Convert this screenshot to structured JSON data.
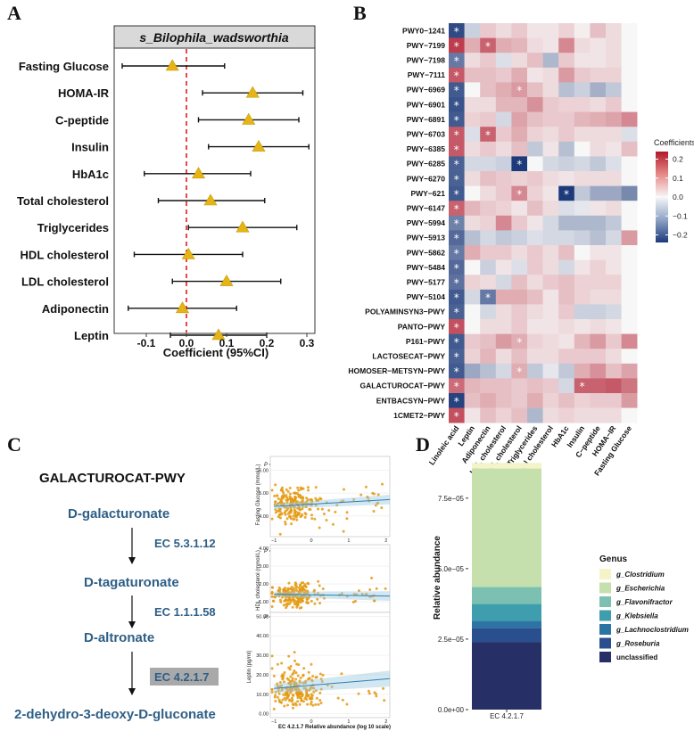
{
  "panels": {
    "a": "A",
    "b": "B",
    "c": "C",
    "d": "D"
  },
  "chart_data": [
    {
      "type": "forest",
      "title": "s_Bilophila_wadsworthia",
      "xlabel": "Coefficient (95%CI)",
      "xlim": [
        -0.18,
        0.32
      ],
      "xticks": [
        -0.1,
        0.0,
        0.1,
        0.2,
        0.3
      ],
      "xtick_labels": [
        "-0.1",
        "0.0",
        "0.1",
        "0.2",
        "0.3"
      ],
      "rows": [
        {
          "label": "Fasting Glucose",
          "est": -0.035,
          "lo": -0.16,
          "hi": 0.095
        },
        {
          "label": "HOMA-IR",
          "est": 0.165,
          "lo": 0.04,
          "hi": 0.29
        },
        {
          "label": "C-peptide",
          "est": 0.155,
          "lo": 0.03,
          "hi": 0.28
        },
        {
          "label": "Insulin",
          "est": 0.18,
          "lo": 0.055,
          "hi": 0.305
        },
        {
          "label": "HbA1c",
          "est": 0.03,
          "lo": -0.105,
          "hi": 0.16
        },
        {
          "label": "Total cholesterol",
          "est": 0.06,
          "lo": -0.07,
          "hi": 0.195
        },
        {
          "label": "Triglycerides",
          "est": 0.14,
          "lo": 0.005,
          "hi": 0.275
        },
        {
          "label": "HDL cholesterol",
          "est": 0.005,
          "lo": -0.13,
          "hi": 0.14
        },
        {
          "label": "LDL cholesterol",
          "est": 0.1,
          "lo": -0.035,
          "hi": 0.235
        },
        {
          "label": "Adiponectin",
          "est": -0.01,
          "lo": -0.145,
          "hi": 0.125
        },
        {
          "label": "Leptin",
          "est": 0.08,
          "lo": -0.04,
          "hi": 0.2
        }
      ]
    },
    {
      "type": "heatmap",
      "legend_title": "Coefficients",
      "legend_ticks": [
        0.2,
        0.1,
        0.0,
        -0.1,
        -0.2
      ],
      "legend_tick_labels": [
        "0.2",
        "0.1",
        "0.0",
        "−0.1",
        "−0.2"
      ],
      "rows": [
        "PWY0−1241",
        "PWY−7199",
        "PWY−7198",
        "PWY−7111",
        "PWY−6969",
        "PWY−6901",
        "PWY−6891",
        "PWY−6703",
        "PWY−6385",
        "PWY−6285",
        "PWY−6270",
        "PWY−621",
        "PWY−6147",
        "PWY−5994",
        "PWY−5913",
        "PWY−5862",
        "PWY−5484",
        "PWY−5177",
        "PWY−5104",
        "POLYAMINSYN3−PWY",
        "PANTO−PWY",
        "P161−PWY",
        "LACTOSECAT−PWY",
        "HOMOSER−METSYN−PWY",
        "GALACTUROCAT−PWY",
        "ENTBACSYN−PWY",
        "1CMET2−PWY"
      ],
      "cols": [
        "Linoleic acid",
        "Leptin",
        "Adiponectin",
        "LDL cholesterol",
        "HDL cholesterol",
        "Triglycerides",
        "Total cholesterol",
        "HbA1c",
        "Insulin",
        "C−peptide",
        "HOMA−IR",
        "Fasting Glucose"
      ],
      "values": [
        [
          -0.22,
          -0.05,
          0.05,
          0.03,
          0.05,
          0.02,
          0.02,
          0.04,
          0.01,
          0.06,
          0.03,
          0.0
        ],
        [
          0.2,
          0.08,
          0.16,
          0.08,
          0.07,
          0.03,
          0.02,
          0.12,
          0.03,
          0.02,
          0.03,
          0.0
        ],
        [
          -0.16,
          0.03,
          0.05,
          -0.03,
          0.03,
          0.06,
          -0.08,
          0.05,
          0.02,
          0.02,
          0.03,
          0.0
        ],
        [
          0.17,
          0.06,
          0.06,
          0.05,
          0.08,
          0.02,
          0.03,
          0.1,
          0.05,
          0.04,
          0.04,
          0.0
        ],
        [
          -0.2,
          0.0,
          0.06,
          0.08,
          0.1,
          0.06,
          0.03,
          -0.07,
          -0.05,
          -0.09,
          -0.06,
          0.0
        ],
        [
          -0.21,
          0.03,
          0.03,
          0.07,
          0.07,
          0.11,
          0.05,
          0.04,
          0.04,
          0.03,
          0.05,
          0.0
        ],
        [
          -0.2,
          0.04,
          0.05,
          -0.04,
          0.09,
          0.06,
          0.05,
          0.05,
          0.07,
          0.08,
          0.09,
          0.12
        ],
        [
          0.17,
          -0.03,
          0.16,
          0.05,
          0.08,
          0.04,
          0.03,
          0.05,
          0.03,
          0.03,
          0.03,
          -0.03
        ],
        [
          0.17,
          0.03,
          0.05,
          0.03,
          0.06,
          -0.06,
          0.02,
          -0.07,
          0.0,
          0.03,
          0.02,
          0.06
        ],
        [
          -0.19,
          -0.04,
          -0.04,
          -0.05,
          -0.24,
          0.0,
          -0.04,
          -0.05,
          -0.04,
          -0.06,
          -0.03,
          0.0
        ],
        [
          -0.19,
          0.03,
          0.06,
          0.05,
          0.04,
          0.05,
          0.03,
          0.02,
          0.03,
          0.03,
          0.03,
          0.0
        ],
        [
          -0.2,
          0.0,
          0.03,
          0.05,
          0.12,
          0.04,
          0.02,
          -0.26,
          -0.06,
          -0.1,
          -0.1,
          -0.14
        ],
        [
          0.16,
          0.07,
          0.05,
          0.04,
          0.02,
          0.06,
          0.03,
          -0.03,
          -0.02,
          0.02,
          0.03,
          0.0
        ],
        [
          -0.15,
          0.03,
          0.04,
          0.12,
          0.05,
          0.02,
          -0.04,
          -0.08,
          -0.08,
          -0.08,
          -0.06,
          0.0
        ],
        [
          -0.18,
          -0.07,
          -0.04,
          -0.06,
          -0.05,
          -0.03,
          -0.04,
          -0.04,
          -0.05,
          -0.07,
          -0.04,
          0.1
        ],
        [
          -0.16,
          0.08,
          0.05,
          0.05,
          0.03,
          0.05,
          0.03,
          0.06,
          0.0,
          0.02,
          0.02,
          0.0
        ],
        [
          -0.18,
          0.0,
          -0.05,
          0.02,
          -0.03,
          0.05,
          0.03,
          -0.04,
          0.02,
          0.04,
          0.02,
          0.0
        ],
        [
          -0.17,
          0.04,
          0.03,
          -0.04,
          0.06,
          0.03,
          0.05,
          0.06,
          0.04,
          0.04,
          0.04,
          0.0
        ],
        [
          -0.2,
          -0.04,
          -0.16,
          0.08,
          0.08,
          0.06,
          0.02,
          0.06,
          0.04,
          0.03,
          0.03,
          0.0
        ],
        [
          -0.19,
          0.0,
          -0.04,
          0.03,
          0.05,
          0.03,
          0.02,
          0.05,
          -0.05,
          -0.05,
          -0.04,
          0.0
        ],
        [
          0.18,
          0.0,
          0.03,
          0.03,
          0.05,
          0.02,
          0.02,
          0.03,
          0.02,
          0.03,
          0.02,
          0.0
        ],
        [
          -0.2,
          0.05,
          0.06,
          0.1,
          0.08,
          0.04,
          0.03,
          0.02,
          0.07,
          0.1,
          0.05,
          0.12
        ],
        [
          -0.19,
          0.04,
          0.07,
          0.03,
          0.06,
          0.03,
          0.03,
          0.05,
          0.05,
          0.05,
          0.03,
          0.0
        ],
        [
          -0.2,
          -0.1,
          -0.07,
          -0.04,
          0.08,
          -0.06,
          -0.02,
          -0.06,
          0.08,
          0.11,
          0.06,
          0.09
        ],
        [
          0.15,
          0.07,
          0.06,
          0.06,
          0.05,
          0.06,
          0.05,
          -0.04,
          0.16,
          0.16,
          0.17,
          0.14
        ],
        [
          -0.23,
          0.06,
          0.08,
          0.06,
          0.05,
          0.08,
          0.04,
          0.06,
          0.04,
          0.05,
          0.05,
          0.1
        ],
        [
          0.18,
          0.02,
          0.06,
          0.04,
          0.06,
          -0.08,
          0.03,
          0.04,
          0.03,
          0.03,
          0.03,
          0.0
        ]
      ],
      "significant": [
        [
          0,
          0
        ],
        [
          1,
          0
        ],
        [
          1,
          2
        ],
        [
          2,
          0
        ],
        [
          3,
          0
        ],
        [
          4,
          0
        ],
        [
          4,
          4
        ],
        [
          5,
          0
        ],
        [
          6,
          0
        ],
        [
          7,
          0
        ],
        [
          7,
          2
        ],
        [
          8,
          0
        ],
        [
          9,
          0
        ],
        [
          9,
          4
        ],
        [
          10,
          0
        ],
        [
          11,
          0
        ],
        [
          11,
          4
        ],
        [
          11,
          7
        ],
        [
          12,
          0
        ],
        [
          13,
          0
        ],
        [
          14,
          0
        ],
        [
          15,
          0
        ],
        [
          16,
          0
        ],
        [
          17,
          0
        ],
        [
          18,
          0
        ],
        [
          18,
          2
        ],
        [
          19,
          0
        ],
        [
          20,
          0
        ],
        [
          21,
          0
        ],
        [
          21,
          4
        ],
        [
          22,
          0
        ],
        [
          23,
          0
        ],
        [
          23,
          4
        ],
        [
          24,
          0
        ],
        [
          24,
          8
        ],
        [
          25,
          0
        ],
        [
          26,
          0
        ]
      ]
    },
    {
      "type": "scatter",
      "ylabel": "Fasting Glucose (mmol/L)",
      "annotation": "P = 0.04",
      "xlim": [
        -1.1,
        2.1
      ],
      "ylim": [
        3.1,
        6.6
      ],
      "yticks": [
        4.0,
        5.0,
        6.0
      ],
      "ytick_labels": [
        "4.00",
        "5.00",
        "6.00"
      ],
      "xticks": [
        -1,
        0,
        1,
        2
      ],
      "xtick_labels": [
        "−1",
        "0",
        "1",
        "2"
      ],
      "fit": {
        "x0": -1.0,
        "y0": 4.42,
        "x1": 2.1,
        "y1": 4.72
      }
    },
    {
      "type": "scatter",
      "ylabel": "HDL cholesterol (mmol/L)",
      "annotation": "P = 0.03",
      "xlim": [
        -1.1,
        2.1
      ],
      "ylim": [
        0.4,
        4.2
      ],
      "yticks": [
        1.0,
        2.0,
        3.0,
        4.0
      ],
      "ytick_labels": [
        "1.00",
        "2.00",
        "3.00",
        "4.00"
      ],
      "xticks": [
        -1,
        0,
        1,
        2
      ],
      "xtick_labels": [
        "−1",
        "0",
        "1",
        "2"
      ],
      "fit": {
        "x0": -1.0,
        "y0": 1.42,
        "x1": 2.1,
        "y1": 1.32
      }
    },
    {
      "type": "scatter",
      "ylabel": "Leptin (pg/ml)",
      "annotation": "P = 0.03",
      "xlabel": "EC 4.2.1.7 Relative abundance (log 10 scale)",
      "xlim": [
        -1.1,
        2.1
      ],
      "ylim": [
        -2,
        52
      ],
      "yticks": [
        0,
        10,
        20,
        30,
        40,
        50
      ],
      "ytick_labels": [
        "0.00",
        "10.00",
        "20.00",
        "30.00",
        "40.00",
        "50.00"
      ],
      "xticks": [
        -1,
        0,
        1,
        2
      ],
      "xtick_labels": [
        "−1",
        "0",
        "1",
        "2"
      ],
      "fit": {
        "x0": -1.0,
        "y0": 13.0,
        "x1": 2.1,
        "y1": 18.0
      }
    },
    {
      "type": "bar",
      "stacked": true,
      "ylabel": "Relative abundance",
      "categories": [
        "EC 4.2.1.7"
      ],
      "ylim": [
        0,
        9.2e-05
      ],
      "yticks": [
        0,
        2.5e-05,
        5e-05,
        7.5e-05
      ],
      "ytick_labels": [
        "0.0e+00",
        "2.5e−05",
        "5.0e−05",
        "7.5e−05"
      ],
      "legend_title": "Genus",
      "series": [
        {
          "name": "unclassified",
          "values": [
            2.4e-05
          ],
          "color": "#262f66"
        },
        {
          "name": "g_Roseburia",
          "values": [
            5e-06
          ],
          "color": "#2a4f8e"
        },
        {
          "name": "g_Lachnoclostridium",
          "values": [
            2.5e-06
          ],
          "color": "#2b74a4"
        },
        {
          "name": "g_Klebsiella",
          "values": [
            6e-06
          ],
          "color": "#3f9ead"
        },
        {
          "name": "g_Flavonifractor",
          "values": [
            6e-06
          ],
          "color": "#7cc0b1"
        },
        {
          "name": "g_Escherichia",
          "values": [
            4.2e-05
          ],
          "color": "#c5e0ac"
        },
        {
          "name": "g_Clostridium",
          "values": [
            2e-06
          ],
          "color": "#f4f4c8"
        }
      ]
    }
  ],
  "pathway": {
    "title": "GALACTUROCAT-PWY",
    "compounds": [
      "D-galacturonate",
      "D-tagaturonate",
      "D-altronate",
      "2-dehydro-3-deoxy-D-gluconate"
    ],
    "enzymes": [
      "EC 5.3.1.12",
      "EC 1.1.1.58",
      "EC 4.2.1.7"
    ]
  }
}
